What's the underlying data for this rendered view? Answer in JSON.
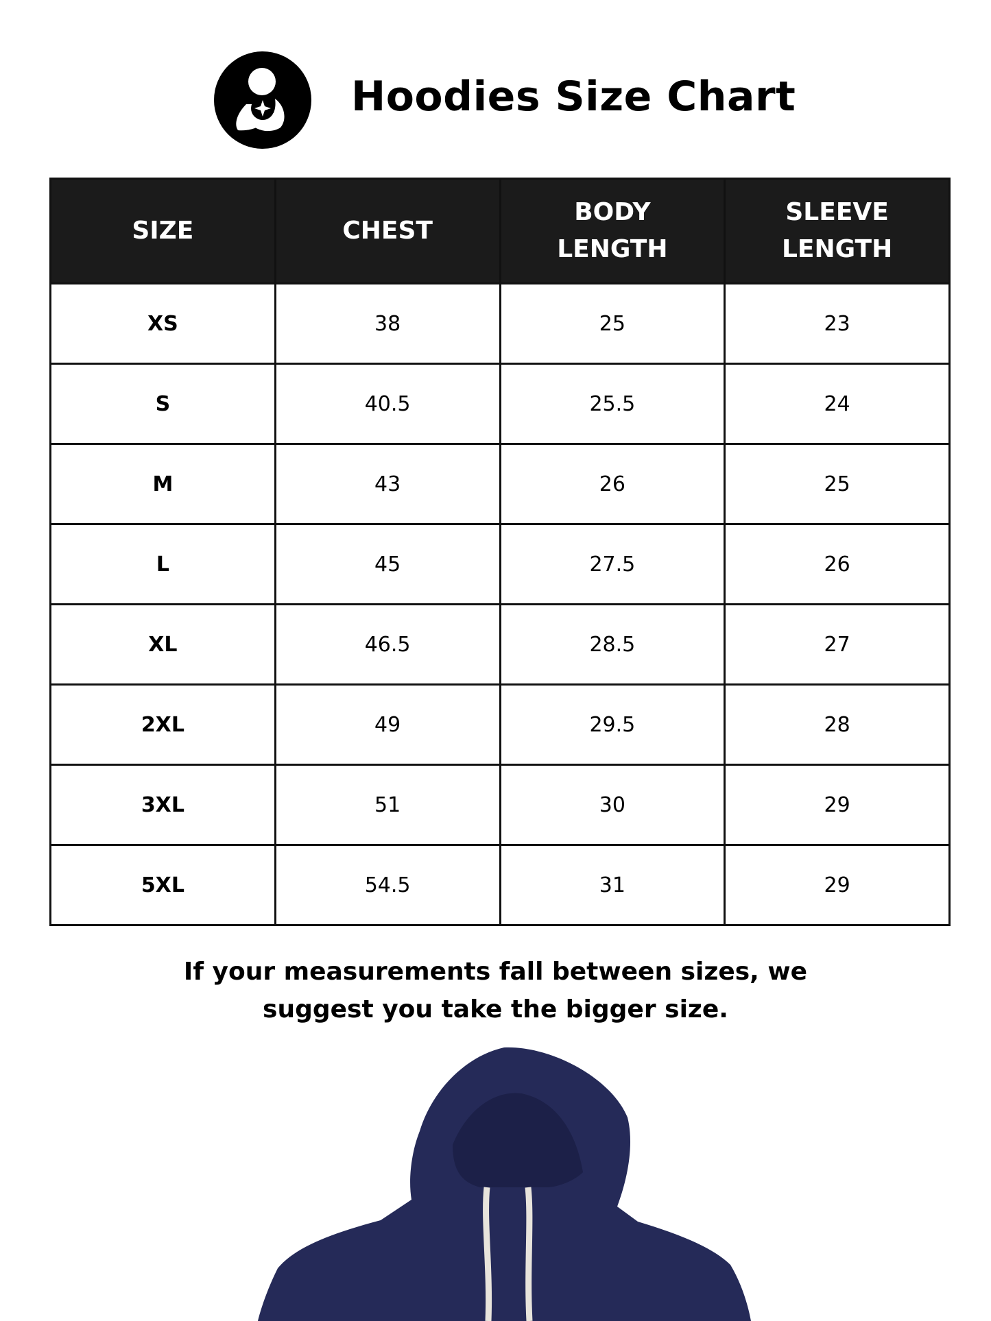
{
  "header": {
    "title": "Hoodies Size Chart",
    "logo_icon": "mother-holding-baby-logo"
  },
  "table": {
    "columns": [
      "SIZE",
      "CHEST",
      "BODY LENGTH",
      "SLEEVE LENGTH"
    ],
    "rows": [
      [
        "XS",
        "38",
        "25",
        "23"
      ],
      [
        "S",
        "40.5",
        "25.5",
        "24"
      ],
      [
        "M",
        "43",
        "26",
        "25"
      ],
      [
        "L",
        "45",
        "27.5",
        "26"
      ],
      [
        "XL",
        "46.5",
        "28.5",
        "27"
      ],
      [
        "2XL",
        "49",
        "29.5",
        "28"
      ],
      [
        "3XL",
        "51",
        "30",
        "29"
      ],
      [
        "5XL",
        "54.5",
        "31",
        "29"
      ]
    ]
  },
  "note": {
    "line1": "If your measurements fall between sizes, we",
    "line2": "suggest you take the bigger size."
  },
  "colors": {
    "header_bg": "#1b1b1b",
    "hoodie": "#252a58"
  }
}
